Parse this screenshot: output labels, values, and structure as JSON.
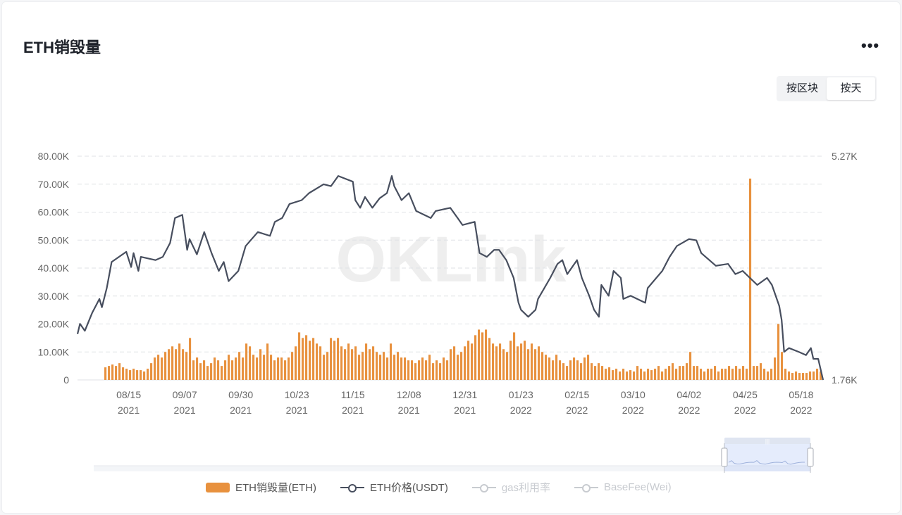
{
  "header": {
    "title": "ETH销毁量",
    "more_icon": "more-dots-icon",
    "more_label": "•••"
  },
  "toggle": {
    "options": [
      "按区块",
      "按天"
    ],
    "active": "按天"
  },
  "watermark": "OKLink",
  "colors": {
    "burn": "#e8913e",
    "price": "#474e5e",
    "inactive": "#c0c4cc"
  },
  "chart_data": {
    "type": "bar+line",
    "title": "ETH销毁量",
    "x_start": "2021-07-25",
    "x_end": "2022-05-27",
    "x_ticks": [
      {
        "day": 21,
        "label": "08/15",
        "year": "2021"
      },
      {
        "day": 44,
        "label": "09/07",
        "year": "2021"
      },
      {
        "day": 67,
        "label": "09/30",
        "year": "2021"
      },
      {
        "day": 90,
        "label": "10/23",
        "year": "2021"
      },
      {
        "day": 113,
        "label": "11/15",
        "year": "2021"
      },
      {
        "day": 136,
        "label": "12/08",
        "year": "2021"
      },
      {
        "day": 159,
        "label": "12/31",
        "year": "2021"
      },
      {
        "day": 182,
        "label": "01/23",
        "year": "2022"
      },
      {
        "day": 205,
        "label": "02/15",
        "year": "2022"
      },
      {
        "day": 228,
        "label": "03/10",
        "year": "2022"
      },
      {
        "day": 251,
        "label": "04/02",
        "year": "2022"
      },
      {
        "day": 274,
        "label": "04/25",
        "year": "2022"
      },
      {
        "day": 297,
        "label": "05/18",
        "year": "2022"
      }
    ],
    "x_range_days": [
      0,
      306
    ],
    "y_left": {
      "min": 0,
      "max": 80,
      "unit": "K",
      "ticks": [
        "0",
        "10.00K",
        "20.00K",
        "30.00K",
        "40.00K",
        "50.00K",
        "60.00K",
        "70.00K",
        "80.00K"
      ]
    },
    "y_right": {
      "min": 1.76,
      "max": 5.27,
      "ticks": [
        "1.76K",
        "5.27K"
      ]
    },
    "grid": true,
    "legend_position": "bottom",
    "series": [
      {
        "name": "ETH销毁量(ETH)",
        "type": "bar",
        "axis": "left",
        "start_day": 11,
        "end_day": 306,
        "values": [
          4.5,
          5,
          5.5,
          5,
          6,
          4.5,
          4,
          3.5,
          4,
          3.5,
          3.5,
          3,
          4,
          6,
          8,
          9,
          8,
          10,
          11,
          12,
          11,
          13,
          11,
          10,
          15,
          7,
          8,
          6,
          7,
          5,
          6,
          8,
          7,
          5,
          7,
          9,
          7,
          8,
          10,
          8,
          13,
          12,
          9,
          8,
          11,
          9,
          13,
          9,
          7,
          8,
          8,
          7,
          8,
          10,
          12,
          17,
          15,
          16,
          14,
          15,
          13,
          12,
          9,
          10,
          15,
          14,
          15,
          12,
          11,
          13,
          11,
          12,
          9,
          10,
          13,
          11,
          12,
          10,
          9,
          10,
          8,
          13,
          9,
          10,
          8,
          8,
          7,
          7,
          6,
          7,
          8,
          7,
          9,
          6,
          7,
          6,
          8,
          7,
          11,
          12,
          9,
          10,
          12,
          14,
          13,
          16,
          18,
          17,
          18,
          15,
          13,
          12,
          13,
          11,
          10,
          14,
          17,
          12,
          13,
          14,
          11,
          13,
          11,
          12,
          10,
          9,
          8,
          7,
          9,
          7,
          6,
          5,
          7,
          8,
          7,
          6,
          8,
          9,
          6,
          5,
          6,
          5,
          4,
          4.5,
          3.5,
          4,
          3,
          4,
          3,
          3.5,
          3,
          5,
          4,
          3,
          4,
          3.5,
          4,
          5,
          3,
          4,
          5,
          6,
          4,
          5,
          5,
          6,
          10,
          5,
          5,
          4,
          3,
          4,
          4,
          5,
          3,
          4,
          4,
          5,
          4,
          5,
          4,
          5,
          4,
          72,
          5,
          5,
          6,
          4,
          3,
          4,
          8,
          20,
          10,
          4,
          3,
          2.5,
          3,
          2.5,
          2.5,
          2.5,
          3,
          3,
          4,
          3
        ]
      },
      {
        "name": "ETH价格(USDT)",
        "type": "line",
        "axis": "right",
        "points": [
          [
            0,
            2.48
          ],
          [
            1,
            2.64
          ],
          [
            3,
            2.53
          ],
          [
            6,
            2.81
          ],
          [
            9,
            3.03
          ],
          [
            10,
            2.9
          ],
          [
            12,
            3.2
          ],
          [
            14,
            3.61
          ],
          [
            17,
            3.69
          ],
          [
            20,
            3.77
          ],
          [
            22,
            3.53
          ],
          [
            23,
            3.75
          ],
          [
            25,
            3.47
          ],
          [
            26,
            3.69
          ],
          [
            32,
            3.64
          ],
          [
            35,
            3.69
          ],
          [
            38,
            3.91
          ],
          [
            40,
            4.3
          ],
          [
            43,
            4.35
          ],
          [
            45,
            3.8
          ],
          [
            46,
            3.97
          ],
          [
            49,
            3.73
          ],
          [
            52,
            4.08
          ],
          [
            55,
            3.75
          ],
          [
            58,
            3.47
          ],
          [
            60,
            3.61
          ],
          [
            62,
            3.31
          ],
          [
            66,
            3.47
          ],
          [
            69,
            3.86
          ],
          [
            74,
            4.08
          ],
          [
            79,
            4.02
          ],
          [
            81,
            4.24
          ],
          [
            84,
            4.3
          ],
          [
            87,
            4.52
          ],
          [
            92,
            4.58
          ],
          [
            95,
            4.69
          ],
          [
            101,
            4.83
          ],
          [
            104,
            4.8
          ],
          [
            107,
            4.96
          ],
          [
            113,
            4.87
          ],
          [
            114,
            4.58
          ],
          [
            116,
            4.46
          ],
          [
            118,
            4.63
          ],
          [
            121,
            4.46
          ],
          [
            124,
            4.61
          ],
          [
            127,
            4.69
          ],
          [
            129,
            4.96
          ],
          [
            130,
            4.8
          ],
          [
            133,
            4.58
          ],
          [
            136,
            4.69
          ],
          [
            139,
            4.41
          ],
          [
            145,
            4.3
          ],
          [
            147,
            4.41
          ],
          [
            153,
            4.46
          ],
          [
            156,
            4.3
          ],
          [
            158,
            4.19
          ],
          [
            163,
            4.24
          ],
          [
            165,
            3.75
          ],
          [
            168,
            3.69
          ],
          [
            171,
            3.8
          ],
          [
            173,
            3.8
          ],
          [
            176,
            3.64
          ],
          [
            179,
            3.36
          ],
          [
            181,
            2.97
          ],
          [
            182,
            2.86
          ],
          [
            185,
            2.75
          ],
          [
            188,
            2.86
          ],
          [
            189,
            3.03
          ],
          [
            194,
            3.36
          ],
          [
            197,
            3.58
          ],
          [
            199,
            3.64
          ],
          [
            201,
            3.42
          ],
          [
            205,
            3.64
          ],
          [
            207,
            3.36
          ],
          [
            210,
            3.08
          ],
          [
            212,
            2.86
          ],
          [
            214,
            2.75
          ],
          [
            215,
            3.25
          ],
          [
            218,
            3.08
          ],
          [
            220,
            3.47
          ],
          [
            223,
            3.36
          ],
          [
            224,
            3.03
          ],
          [
            227,
            3.08
          ],
          [
            233,
            2.97
          ],
          [
            234,
            3.2
          ],
          [
            240,
            3.47
          ],
          [
            243,
            3.69
          ],
          [
            246,
            3.86
          ],
          [
            251,
            3.97
          ],
          [
            254,
            3.95
          ],
          [
            256,
            3.75
          ],
          [
            262,
            3.55
          ],
          [
            267,
            3.58
          ],
          [
            270,
            3.42
          ],
          [
            273,
            3.47
          ],
          [
            279,
            3.25
          ],
          [
            283,
            3.36
          ],
          [
            285,
            3.25
          ],
          [
            288,
            2.92
          ],
          [
            289,
            2.7
          ],
          [
            290,
            2.2
          ],
          [
            292,
            2.26
          ],
          [
            296,
            2.2
          ],
          [
            299,
            2.15
          ],
          [
            301,
            2.26
          ],
          [
            302,
            2.09
          ],
          [
            304,
            2.09
          ],
          [
            306,
            1.76
          ]
        ]
      },
      {
        "name": "gas利用率",
        "type": "line",
        "hidden": true
      },
      {
        "name": "BaseFee(Wei)",
        "type": "line",
        "hidden": true
      }
    ],
    "zoom_window_percent": [
      88,
      100
    ]
  }
}
